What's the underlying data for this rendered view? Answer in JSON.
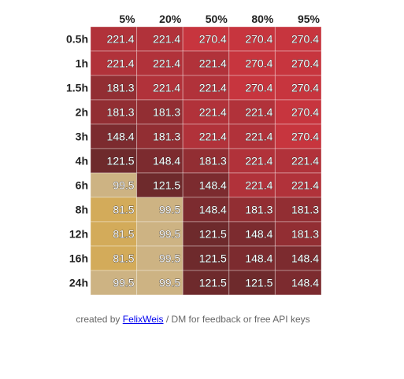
{
  "chart_data": {
    "type": "heatmap",
    "columns": [
      "5%",
      "20%",
      "50%",
      "80%",
      "95%"
    ],
    "rows": [
      "0.5h",
      "1h",
      "1.5h",
      "2h",
      "3h",
      "4h",
      "6h",
      "8h",
      "12h",
      "16h",
      "24h"
    ],
    "values": [
      [
        221.4,
        221.4,
        270.4,
        270.4,
        270.4
      ],
      [
        221.4,
        221.4,
        221.4,
        270.4,
        270.4
      ],
      [
        181.3,
        221.4,
        221.4,
        270.4,
        270.4
      ],
      [
        181.3,
        181.3,
        221.4,
        221.4,
        270.4
      ],
      [
        148.4,
        181.3,
        221.4,
        221.4,
        270.4
      ],
      [
        121.5,
        148.4,
        181.3,
        221.4,
        221.4
      ],
      [
        99.5,
        121.5,
        148.4,
        221.4,
        221.4
      ],
      [
        81.5,
        99.5,
        148.4,
        181.3,
        181.3
      ],
      [
        81.5,
        99.5,
        121.5,
        148.4,
        181.3
      ],
      [
        81.5,
        99.5,
        121.5,
        148.4,
        148.4
      ],
      [
        99.5,
        99.5,
        121.5,
        121.5,
        148.4
      ]
    ],
    "color_scale": {
      "81.5": "#d3ab5a",
      "99.5": "#cdb383",
      "121.5": "#6e2a2c",
      "148.4": "#7c2b2f",
      "181.3": "#922e33",
      "221.4": "#b1323a",
      "270.4": "#c7353e"
    }
  },
  "credit": {
    "prefix": "created by ",
    "link": "FelixWeis",
    "suffix": " / DM for feedback or free API keys"
  }
}
